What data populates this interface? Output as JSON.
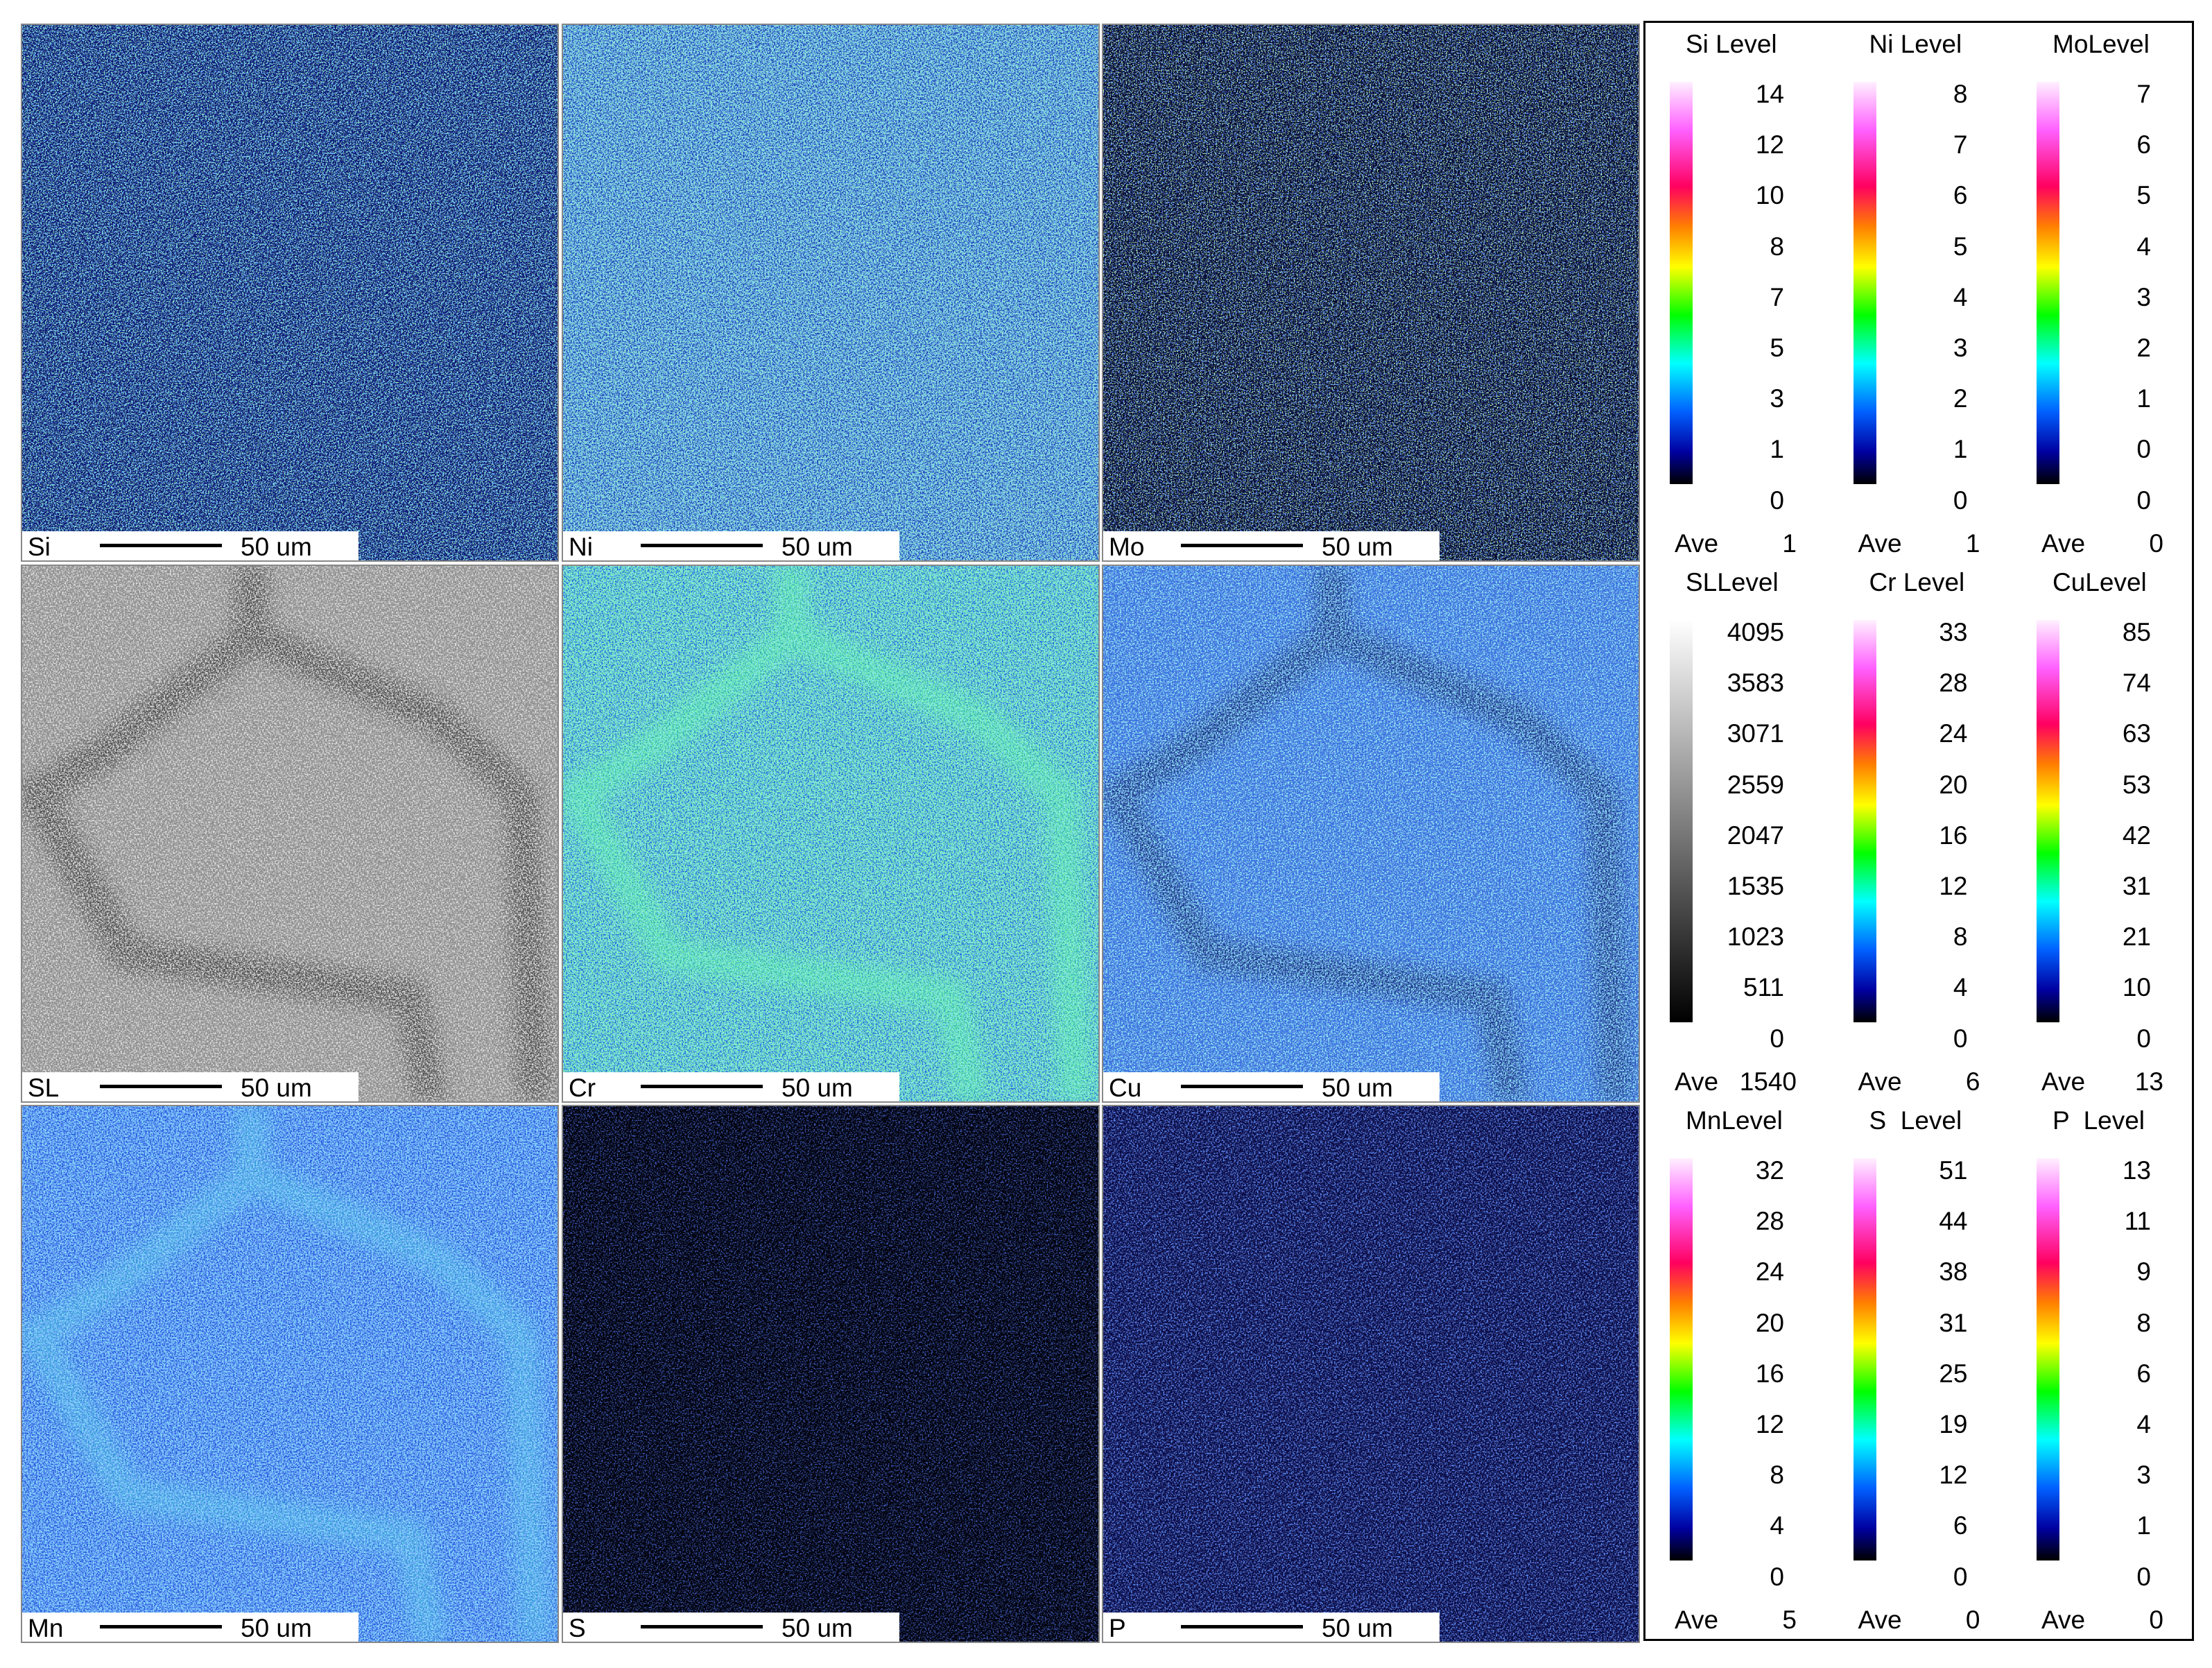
{
  "panels": [
    {
      "element": "Si",
      "scale_bar": "50 um"
    },
    {
      "element": "Ni",
      "scale_bar": "50 um"
    },
    {
      "element": "Mo",
      "scale_bar": "50 um"
    },
    {
      "element": "SL",
      "scale_bar": "50 um"
    },
    {
      "element": "Cr",
      "scale_bar": "50 um"
    },
    {
      "element": "Cu",
      "scale_bar": "50 um"
    },
    {
      "element": "Mn",
      "scale_bar": "50 um"
    },
    {
      "element": "S",
      "scale_bar": "50 um"
    },
    {
      "element": "P",
      "scale_bar": "50 um"
    }
  ],
  "legends": [
    {
      "title": "Si Level",
      "levels": [
        14,
        12,
        10,
        8,
        7,
        5,
        3,
        1,
        0
      ],
      "ave_label": "Ave",
      "ave": 1
    },
    {
      "title": "Ni Level",
      "levels": [
        8,
        7,
        6,
        5,
        4,
        3,
        2,
        1,
        0
      ],
      "ave_label": "Ave",
      "ave": 1
    },
    {
      "title": "MoLevel",
      "levels": [
        7,
        6,
        5,
        4,
        3,
        2,
        1,
        0,
        0
      ],
      "ave_label": "Ave",
      "ave": 0
    },
    {
      "title": "SLLevel",
      "levels": [
        4095,
        3583,
        3071,
        2559,
        2047,
        1535,
        1023,
        511,
        0
      ],
      "ave_label": "Ave",
      "ave": 1540
    },
    {
      "title": "Cr Level",
      "levels": [
        33,
        28,
        24,
        20,
        16,
        12,
        8,
        4,
        0
      ],
      "ave_label": "Ave",
      "ave": 6
    },
    {
      "title": "CuLevel",
      "levels": [
        85,
        74,
        63,
        53,
        42,
        31,
        21,
        10,
        0
      ],
      "ave_label": "Ave",
      "ave": 13
    },
    {
      "title": "MnLevel",
      "levels": [
        32,
        28,
        24,
        20,
        16,
        12,
        8,
        4,
        0
      ],
      "ave_label": "Ave",
      "ave": 5
    },
    {
      "title": "S  Level",
      "levels": [
        51,
        44,
        38,
        31,
        25,
        19,
        12,
        6,
        0
      ],
      "ave_label": "Ave",
      "ave": 0
    },
    {
      "title": "P  Level",
      "levels": [
        13,
        11,
        9,
        8,
        6,
        4,
        3,
        1,
        0
      ],
      "ave_label": "Ave",
      "ave": 0
    }
  ]
}
